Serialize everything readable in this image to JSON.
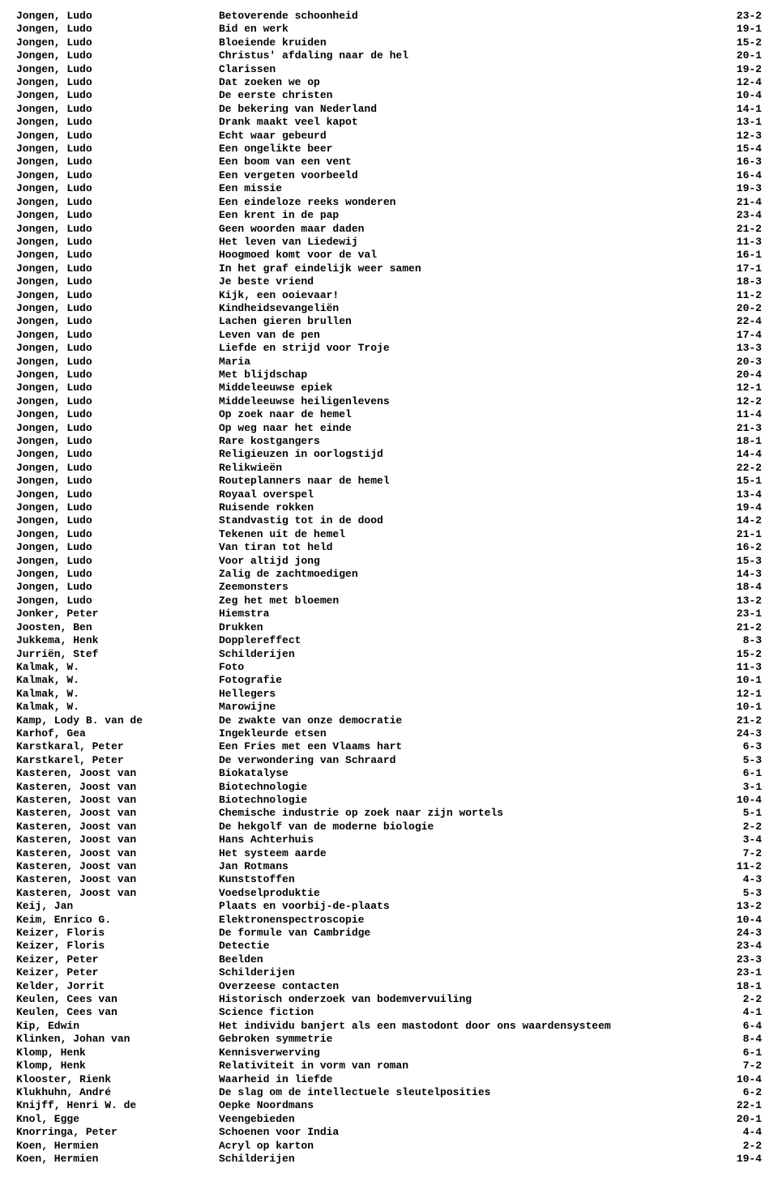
{
  "entries": [
    {
      "author": "Jongen, Ludo",
      "title": "Betoverende schoonheid",
      "code": "23-2"
    },
    {
      "author": "Jongen, Ludo",
      "title": "Bid en werk",
      "code": "19-1"
    },
    {
      "author": "Jongen, Ludo",
      "title": "Bloeiende kruiden",
      "code": "15-2"
    },
    {
      "author": "Jongen, Ludo",
      "title": "Christus' afdaling naar de hel",
      "code": "20-1"
    },
    {
      "author": "Jongen, Ludo",
      "title": "Clarissen",
      "code": "19-2"
    },
    {
      "author": "Jongen, Ludo",
      "title": "Dat zoeken we op",
      "code": "12-4"
    },
    {
      "author": "Jongen, Ludo",
      "title": "De eerste christen",
      "code": "10-4"
    },
    {
      "author": "Jongen, Ludo",
      "title": "De bekering van Nederland",
      "code": "14-1"
    },
    {
      "author": "Jongen, Ludo",
      "title": "Drank maakt veel kapot",
      "code": "13-1"
    },
    {
      "author": "Jongen, Ludo",
      "title": "Echt waar gebeurd",
      "code": "12-3"
    },
    {
      "author": "Jongen, Ludo",
      "title": "Een ongelikte beer",
      "code": "15-4"
    },
    {
      "author": "Jongen, Ludo",
      "title": "Een boom van een vent",
      "code": "16-3"
    },
    {
      "author": "Jongen, Ludo",
      "title": "Een vergeten voorbeeld",
      "code": "16-4"
    },
    {
      "author": "Jongen, Ludo",
      "title": "Een missie",
      "code": "19-3"
    },
    {
      "author": "Jongen, Ludo",
      "title": "Een eindeloze reeks wonderen",
      "code": "21-4"
    },
    {
      "author": "Jongen, Ludo",
      "title": "Een krent in de pap",
      "code": "23-4"
    },
    {
      "author": "Jongen, Ludo",
      "title": "Geen woorden maar daden",
      "code": "21-2"
    },
    {
      "author": "Jongen, Ludo",
      "title": "Het leven van Liedewij",
      "code": "11-3"
    },
    {
      "author": "Jongen, Ludo",
      "title": "Hoogmoed komt voor de val",
      "code": "16-1"
    },
    {
      "author": "Jongen, Ludo",
      "title": "In het graf eindelijk weer samen",
      "code": "17-1"
    },
    {
      "author": "Jongen, Ludo",
      "title": "Je beste vriend",
      "code": "18-3"
    },
    {
      "author": "Jongen, Ludo",
      "title": "Kijk, een ooievaar!",
      "code": "11-2"
    },
    {
      "author": "Jongen, Ludo",
      "title": "Kindheidsevangeliën",
      "code": "20-2"
    },
    {
      "author": "Jongen, Ludo",
      "title": "Lachen gieren brullen",
      "code": "22-4"
    },
    {
      "author": "Jongen, Ludo",
      "title": "Leven van de pen",
      "code": "17-4"
    },
    {
      "author": "Jongen, Ludo",
      "title": "Liefde en strijd voor Troje",
      "code": "13-3"
    },
    {
      "author": "Jongen, Ludo",
      "title": "Maria",
      "code": "20-3"
    },
    {
      "author": "Jongen, Ludo",
      "title": "Met blijdschap",
      "code": "20-4"
    },
    {
      "author": "Jongen, Ludo",
      "title": "Middeleeuwse epiek",
      "code": "12-1"
    },
    {
      "author": "Jongen, Ludo",
      "title": "Middeleeuwse heiligenlevens",
      "code": "12-2"
    },
    {
      "author": "Jongen, Ludo",
      "title": "Op zoek naar de hemel",
      "code": "11-4"
    },
    {
      "author": "Jongen, Ludo",
      "title": "Op weg naar het einde",
      "code": "21-3"
    },
    {
      "author": "Jongen, Ludo",
      "title": "Rare kostgangers",
      "code": "18-1"
    },
    {
      "author": "Jongen, Ludo",
      "title": "Religieuzen in oorlogstijd",
      "code": "14-4"
    },
    {
      "author": "Jongen, Ludo",
      "title": "Relikwieën",
      "code": "22-2"
    },
    {
      "author": "Jongen, Ludo",
      "title": "Routeplanners naar de hemel",
      "code": "15-1"
    },
    {
      "author": "Jongen, Ludo",
      "title": "Royaal overspel",
      "code": "13-4"
    },
    {
      "author": "Jongen, Ludo",
      "title": "Ruisende rokken",
      "code": "19-4"
    },
    {
      "author": "Jongen, Ludo",
      "title": "Standvastig tot in de dood",
      "code": "14-2"
    },
    {
      "author": "Jongen, Ludo",
      "title": "Tekenen uit de hemel",
      "code": "21-1"
    },
    {
      "author": "Jongen, Ludo",
      "title": "Van tiran tot held",
      "code": "16-2"
    },
    {
      "author": "Jongen, Ludo",
      "title": "Voor altijd jong",
      "code": "15-3"
    },
    {
      "author": "Jongen, Ludo",
      "title": "Zalig de zachtmoedigen",
      "code": "14-3"
    },
    {
      "author": "Jongen, Ludo",
      "title": "Zeemonsters",
      "code": "18-4"
    },
    {
      "author": "Jongen, Ludo",
      "title": "Zeg het met bloemen",
      "code": "13-2"
    },
    {
      "author": "Jonker, Peter",
      "title": "Hiemstra",
      "code": "23-1"
    },
    {
      "author": "Joosten, Ben",
      "title": "Drukken",
      "code": "21-2"
    },
    {
      "author": "Jukkema, Henk",
      "title": "Dopplereffect",
      "code": "8-3"
    },
    {
      "author": "Jurriën, Stef",
      "title": "Schilderijen",
      "code": "15-2"
    },
    {
      "author": "Kalmak, W.",
      "title": "Foto",
      "code": "11-3"
    },
    {
      "author": "Kalmak, W.",
      "title": "Fotografie",
      "code": "10-1"
    },
    {
      "author": "Kalmak, W.",
      "title": "Hellegers",
      "code": "12-1"
    },
    {
      "author": "Kalmak, W.",
      "title": "Marowijne",
      "code": "10-1"
    },
    {
      "author": "Kamp, Lody B. van de",
      "title": "De zwakte van onze democratie",
      "code": "21-2"
    },
    {
      "author": "Karhof, Gea",
      "title": "Ingekleurde etsen",
      "code": "24-3"
    },
    {
      "author": "Karstkaral, Peter",
      "title": "Een Fries met een Vlaams hart",
      "code": "6-3"
    },
    {
      "author": "Karstkarel, Peter",
      "title": "De verwondering van Schraard",
      "code": "5-3"
    },
    {
      "author": "Kasteren, Joost van",
      "title": "Biokatalyse",
      "code": "6-1"
    },
    {
      "author": "Kasteren, Joost van",
      "title": "Biotechnologie",
      "code": "3-1"
    },
    {
      "author": "Kasteren, Joost van",
      "title": "Biotechnologie",
      "code": "10-4"
    },
    {
      "author": "Kasteren, Joost van",
      "title": "Chemische industrie op zoek naar zijn wortels",
      "code": "5-1"
    },
    {
      "author": "Kasteren, Joost van",
      "title": "De hekgolf van de moderne biologie",
      "code": "2-2"
    },
    {
      "author": "Kasteren, Joost van",
      "title": "Hans Achterhuis",
      "code": "3-4"
    },
    {
      "author": "Kasteren, Joost van",
      "title": "Het systeem aarde",
      "code": "7-2"
    },
    {
      "author": "Kasteren, Joost van",
      "title": "Jan Rotmans",
      "code": "11-2"
    },
    {
      "author": "Kasteren, Joost van",
      "title": "Kunststoffen",
      "code": "4-3"
    },
    {
      "author": "Kasteren, Joost van",
      "title": "Voedselproduktie",
      "code": "5-3"
    },
    {
      "author": "Keij, Jan",
      "title": "Plaats en voorbij-de-plaats",
      "code": "13-2"
    },
    {
      "author": "Keim, Enrico G.",
      "title": "Elektronenspectroscopie",
      "code": "10-4"
    },
    {
      "author": "Keizer, Floris",
      "title": "De formule van Cambridge",
      "code": "24-3"
    },
    {
      "author": "Keizer, Floris",
      "title": "Detectie",
      "code": "23-4"
    },
    {
      "author": "Keizer, Peter",
      "title": "Beelden",
      "code": "23-3"
    },
    {
      "author": "Keizer, Peter",
      "title": "Schilderijen",
      "code": "23-1"
    },
    {
      "author": "Kelder, Jorrit",
      "title": "Overzeese contacten",
      "code": "18-1"
    },
    {
      "author": "Keulen, Cees van",
      "title": "Historisch onderzoek van bodemvervuiling",
      "code": "2-2"
    },
    {
      "author": "Keulen, Cees van",
      "title": "Science fiction",
      "code": "4-1"
    },
    {
      "author": "Kip, Edwin",
      "title": "Het individu banjert als een mastodont door ons waardensysteem",
      "code": "6-4"
    },
    {
      "author": "Klinken, Johan van",
      "title": "Gebroken symmetrie",
      "code": "8-4"
    },
    {
      "author": "Klomp, Henk",
      "title": "Kennisverwerving",
      "code": "6-1"
    },
    {
      "author": "Klomp, Henk",
      "title": "Relativiteit in vorm van roman",
      "code": "7-2"
    },
    {
      "author": "Klooster, Rienk",
      "title": "Waarheid in liefde",
      "code": "10-4"
    },
    {
      "author": "Klukhuhn, André",
      "title": "De slag om de intellectuele sleutelposities",
      "code": "6-2"
    },
    {
      "author": "Knijff, Henri W. de",
      "title": "Oepke Noordmans",
      "code": "22-1"
    },
    {
      "author": "Knol, Egge",
      "title": "Veengebieden",
      "code": "20-1"
    },
    {
      "author": "Knorringa, Peter",
      "title": "Schoenen voor India",
      "code": "4-4"
    },
    {
      "author": "Koen, Hermien",
      "title": "Acryl op karton",
      "code": "2-2"
    },
    {
      "author": "Koen, Hermien",
      "title": "Schilderijen",
      "code": "19-4"
    }
  ]
}
